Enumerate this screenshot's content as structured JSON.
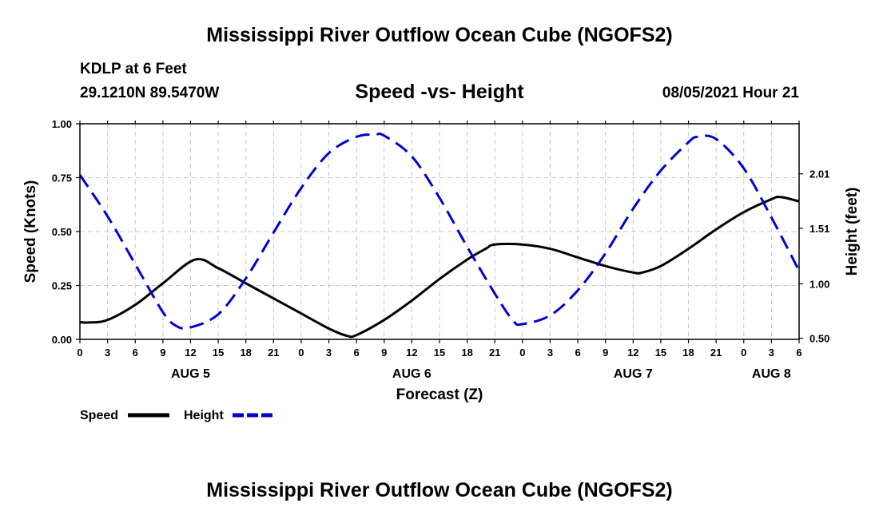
{
  "chart_data": {
    "type": "line",
    "title": "Mississippi River Outflow Ocean Cube (NGOFS2)",
    "footer_title": "Mississippi River Outflow Ocean Cube (NGOFS2)",
    "station": "KDLP at 6 Feet",
    "location": "29.1210N  89.5470W",
    "subtitle": "Speed -vs- Height",
    "datetime": "08/05/2021 Hour 21",
    "xlabel": "Forecast (Z)",
    "ylabel_left": "Speed (Knots)",
    "ylabel_right": "Height (feet)",
    "x_range": [
      0,
      78
    ],
    "x_tick_labels": [
      "0",
      "3",
      "6",
      "9",
      "12",
      "15",
      "18",
      "21",
      "0",
      "3",
      "6",
      "9",
      "12",
      "15",
      "18",
      "21",
      "0",
      "3",
      "6",
      "9",
      "12",
      "15",
      "18",
      "21",
      "0",
      "3",
      "6"
    ],
    "x_day_labels": [
      {
        "label": "AUG 5",
        "hour": 12
      },
      {
        "label": "AUG 6",
        "hour": 36
      },
      {
        "label": "AUG 7",
        "hour": 60
      },
      {
        "label": "AUG 8",
        "hour": 75
      }
    ],
    "ylim_left": [
      0,
      1
    ],
    "yticks_left": [
      "0.00",
      "0.25",
      "0.50",
      "0.75",
      "1.00"
    ],
    "ylim_right": [
      0.49,
      2.47
    ],
    "yticks_right": [
      {
        "label": "0.50",
        "value": 0.5
      },
      {
        "label": "1.00",
        "value": 1.0
      },
      {
        "label": "1.51",
        "value": 1.51
      },
      {
        "label": "2.01",
        "value": 2.01
      }
    ],
    "grid": true,
    "series": [
      {
        "name": "Speed",
        "axis": "left",
        "color": "#000000",
        "style": "solid",
        "x": [
          0,
          1,
          3,
          6,
          9,
          12.5,
          15,
          18,
          21,
          24,
          27,
          29,
          30,
          33,
          36,
          39,
          42,
          44,
          45,
          48,
          51,
          54,
          57,
          60,
          61,
          63,
          66,
          69,
          72,
          75,
          76,
          78
        ],
        "y": [
          0.08,
          0.078,
          0.09,
          0.16,
          0.26,
          0.37,
          0.33,
          0.26,
          0.19,
          0.12,
          0.05,
          0.016,
          0.02,
          0.09,
          0.18,
          0.28,
          0.37,
          0.42,
          0.44,
          0.44,
          0.42,
          0.38,
          0.34,
          0.31,
          0.31,
          0.34,
          0.42,
          0.51,
          0.59,
          0.65,
          0.66,
          0.64
        ]
      },
      {
        "name": "Height",
        "axis": "right",
        "color": "#0000cc",
        "style": "dashed",
        "x": [
          0,
          3,
          6,
          9,
          10.5,
          12,
          15,
          18,
          21,
          24,
          27,
          30,
          32,
          33,
          36,
          39,
          42,
          45,
          47,
          48,
          51,
          54,
          57,
          60,
          63,
          66,
          67,
          69,
          72,
          75,
          78
        ],
        "y": [
          2.0,
          1.62,
          1.18,
          0.74,
          0.61,
          0.6,
          0.72,
          1.05,
          1.47,
          1.88,
          2.2,
          2.35,
          2.37,
          2.36,
          2.17,
          1.79,
          1.34,
          0.91,
          0.66,
          0.63,
          0.71,
          0.94,
          1.28,
          1.69,
          2.04,
          2.3,
          2.35,
          2.33,
          2.06,
          1.61,
          1.12
        ]
      }
    ],
    "legend": [
      {
        "label": "Speed",
        "color": "#000000",
        "style": "solid"
      },
      {
        "label": "Height",
        "color": "#0000cc",
        "style": "dashed"
      }
    ]
  }
}
